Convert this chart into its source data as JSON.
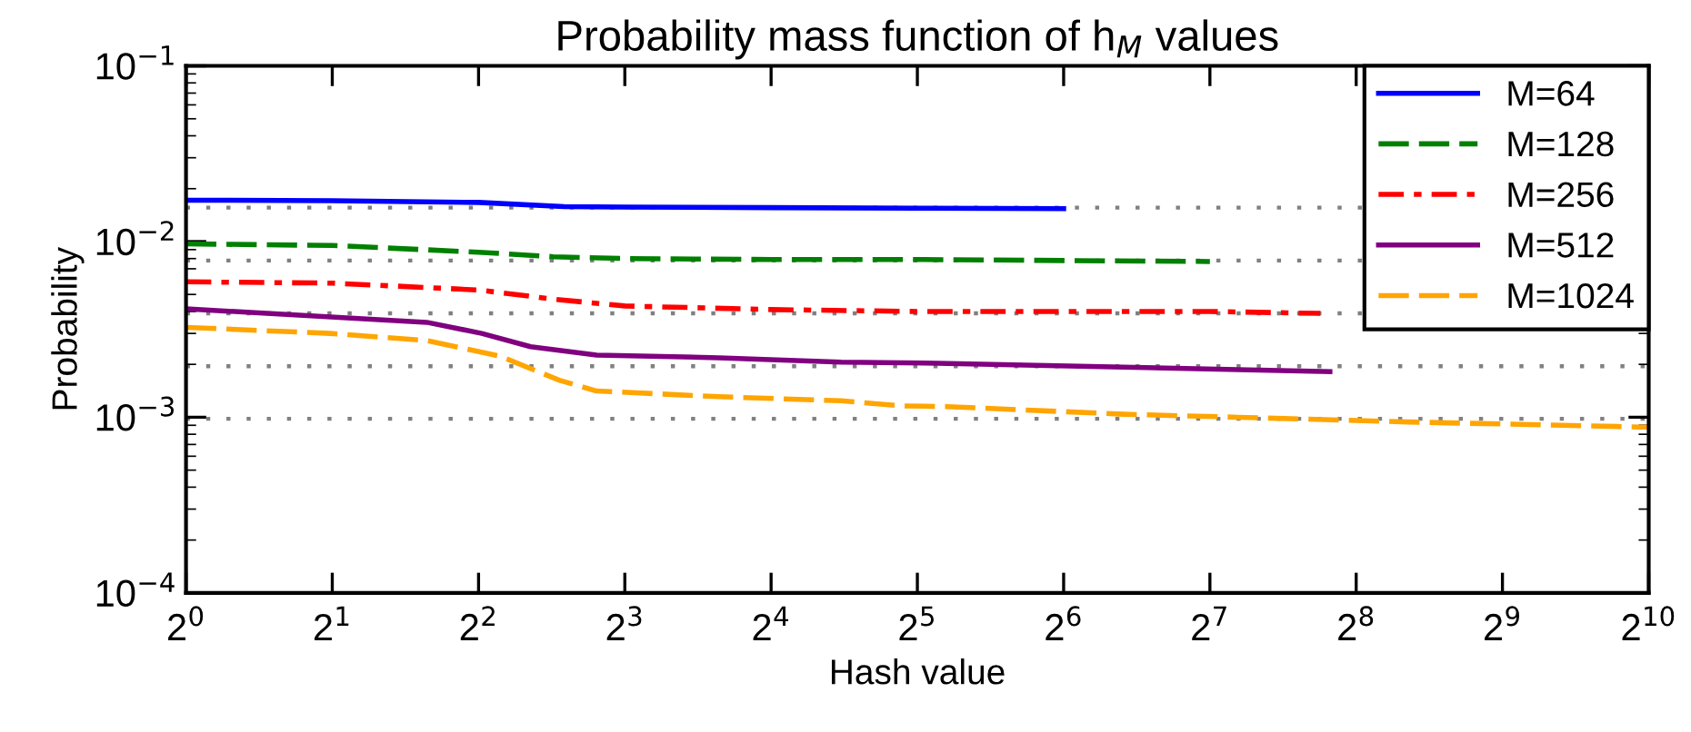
{
  "chart_data": {
    "type": "line",
    "title": "Probability mass function of h$_{M}$ values",
    "xlabel": "Hash value",
    "ylabel": "Probability",
    "log": "xy",
    "grid": false,
    "legend": "top right",
    "xlim": [
      1,
      1024
    ],
    "xticks": [
      {
        "value": 1,
        "label": "2$^{0}$"
      },
      {
        "value": 2,
        "label": "2$^{1}$"
      },
      {
        "value": 4,
        "label": "2$^{2}$"
      },
      {
        "value": 8,
        "label": "2$^{3}$"
      },
      {
        "value": 16,
        "label": "2$^{4}$"
      },
      {
        "value": 32,
        "label": "2$^{5}$"
      },
      {
        "value": 64,
        "label": "2$^{6}$"
      },
      {
        "value": 128,
        "label": "2$^{7}$"
      },
      {
        "value": 256,
        "label": "2$^{8}$"
      },
      {
        "value": 512,
        "label": "2$^{9}$"
      },
      {
        "value": 1024,
        "label": "2$^{10}$"
      }
    ],
    "ylim": [
      0.0001,
      0.1
    ],
    "yticks": [
      {
        "value": 0.0001,
        "label": "10$^{−4}$"
      },
      {
        "value": 0.001,
        "label": "10$^{−3}$"
      },
      {
        "value": 0.01,
        "label": "10$^{−2}$"
      },
      {
        "value": 0.1,
        "label": "10$^{−1}$"
      }
    ],
    "series": [
      {
        "name": "M=64",
        "color": "#0000ff",
        "line_style": "solid",
        "x": [
          1,
          2,
          4,
          6,
          8,
          16,
          32,
          64
        ],
        "values": [
          0.0172,
          0.0171,
          0.0167,
          0.0158,
          0.0157,
          0.0156,
          0.0155,
          0.0154
        ]
      },
      {
        "name": "M=128",
        "color": "#008000",
        "line_style": "dashed",
        "x": [
          1,
          2,
          4,
          5.7,
          8,
          16,
          32,
          64,
          128
        ],
        "values": [
          0.0097,
          0.0095,
          0.0087,
          0.0082,
          0.008,
          0.0079,
          0.0079,
          0.0078,
          0.0077
        ]
      },
      {
        "name": "M=256",
        "color": "#ff0000",
        "line_style": "dashdot",
        "x": [
          1,
          2,
          4,
          5.7,
          8,
          16,
          32,
          64,
          128,
          216
        ],
        "values": [
          0.0059,
          0.0058,
          0.0053,
          0.0047,
          0.0043,
          0.0041,
          0.004,
          0.004,
          0.004,
          0.0039
        ]
      },
      {
        "name": "M=512",
        "color": "#800080",
        "line_style": "solid",
        "x": [
          1,
          3.13,
          4.06,
          5.12,
          7,
          12.5,
          22.3,
          35.2,
          226
        ],
        "values": [
          0.00414,
          0.00347,
          0.003,
          0.00252,
          0.00226,
          0.00218,
          0.00206,
          0.00203,
          0.00182
        ]
      },
      {
        "name": "M=1024",
        "color": "#ffa500",
        "line_style": "dashed",
        "x": [
          1,
          1.98,
          3.13,
          4.42,
          5.88,
          7,
          12.5,
          22.3,
          29.6,
          36.8,
          85,
          146,
          327,
          980,
          1024
        ],
        "values": [
          0.00325,
          0.003,
          0.00273,
          0.00223,
          0.00162,
          0.00141,
          0.00131,
          0.00124,
          0.00116,
          0.00115,
          0.00104,
          0.001,
          0.00094,
          0.00088,
          0.00088
        ]
      }
    ],
    "ref_lines": [
      {
        "axis": "y",
        "value": 0.0156,
        "color": "#808080",
        "line_style": "dotted"
      },
      {
        "axis": "y",
        "value": 0.0078,
        "color": "#808080",
        "line_style": "dotted"
      },
      {
        "axis": "y",
        "value": 0.0039,
        "color": "#808080",
        "line_style": "dotted"
      },
      {
        "axis": "y",
        "value": 0.00195,
        "color": "#808080",
        "line_style": "dotted"
      },
      {
        "axis": "y",
        "value": 0.00098,
        "color": "#808080",
        "line_style": "dotted"
      }
    ]
  }
}
